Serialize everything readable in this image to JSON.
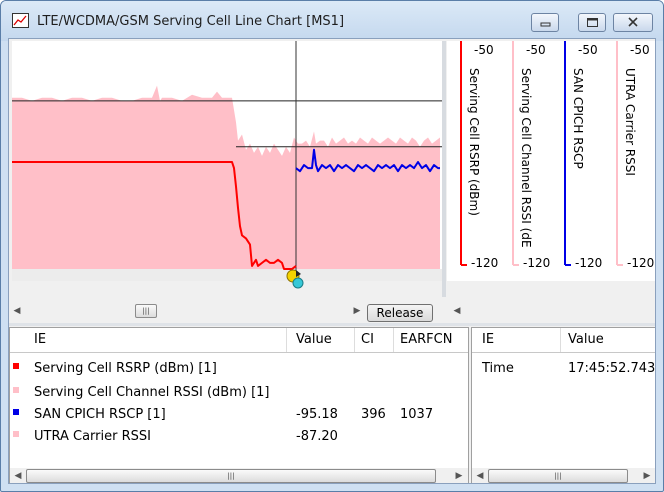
{
  "window": {
    "title": "LTE/WCDMA/GSM Serving Cell Line Chart [MS1]"
  },
  "chart_data": {
    "type": "line",
    "ylim": [
      -120,
      -50
    ],
    "cursor_x": 284,
    "series": [
      {
        "name": "Serving Cell RSRP (dBm)",
        "color": "#ff0000",
        "points": [
          [
            0,
            -85
          ],
          [
            40,
            -85
          ],
          [
            80,
            -85
          ],
          [
            120,
            -85
          ],
          [
            160,
            -85
          ],
          [
            200,
            -85
          ],
          [
            220,
            -85
          ],
          [
            222,
            -87
          ],
          [
            224,
            -93
          ],
          [
            226,
            -100
          ],
          [
            228,
            -106
          ],
          [
            230,
            -109
          ],
          [
            234,
            -110
          ],
          [
            238,
            -112
          ],
          [
            240,
            -119
          ],
          [
            244,
            -117
          ],
          [
            246,
            -119
          ],
          [
            250,
            -118
          ],
          [
            254,
            -117
          ],
          [
            258,
            -118
          ],
          [
            262,
            -118
          ],
          [
            266,
            -117
          ],
          [
            270,
            -118
          ],
          [
            272,
            -120
          ],
          [
            276,
            -120
          ],
          [
            280,
            -120
          ],
          [
            284,
            -119
          ]
        ]
      },
      {
        "name": "Serving Cell Channel RSSI (dBm)",
        "color": "#ffbfc8",
        "type": "area",
        "points": [
          [
            0,
            -64
          ],
          [
            10,
            -64
          ],
          [
            20,
            -65
          ],
          [
            30,
            -64
          ],
          [
            40,
            -64
          ],
          [
            50,
            -65
          ],
          [
            60,
            -64
          ],
          [
            70,
            -64
          ],
          [
            80,
            -65
          ],
          [
            90,
            -64
          ],
          [
            100,
            -64
          ],
          [
            110,
            -65
          ],
          [
            120,
            -65
          ],
          [
            130,
            -64
          ],
          [
            140,
            -64
          ],
          [
            145,
            -60
          ],
          [
            148,
            -65
          ],
          [
            150,
            -64
          ],
          [
            160,
            -64
          ],
          [
            170,
            -65
          ],
          [
            180,
            -63
          ],
          [
            190,
            -64
          ],
          [
            200,
            -64
          ],
          [
            205,
            -62
          ],
          [
            210,
            -64
          ],
          [
            218,
            -64
          ],
          [
            220,
            -64
          ],
          [
            224,
            -72
          ],
          [
            226,
            -78
          ],
          [
            230,
            -76
          ],
          [
            234,
            -81
          ],
          [
            238,
            -79
          ],
          [
            242,
            -82
          ],
          [
            246,
            -80
          ],
          [
            250,
            -83
          ],
          [
            254,
            -80
          ],
          [
            258,
            -82
          ],
          [
            262,
            -79
          ],
          [
            266,
            -81
          ],
          [
            270,
            -83
          ],
          [
            274,
            -80
          ],
          [
            278,
            -82
          ],
          [
            282,
            -77
          ],
          [
            286,
            -79
          ],
          [
            290,
            -79
          ],
          [
            294,
            -78
          ],
          [
            298,
            -80
          ],
          [
            302,
            -75
          ],
          [
            304,
            -79
          ],
          [
            308,
            -78
          ],
          [
            312,
            -78
          ],
          [
            316,
            -80
          ],
          [
            320,
            -77
          ],
          [
            324,
            -79
          ],
          [
            328,
            -78
          ],
          [
            332,
            -77
          ],
          [
            336,
            -79
          ],
          [
            340,
            -78
          ],
          [
            344,
            -79
          ],
          [
            348,
            -77
          ],
          [
            352,
            -78
          ],
          [
            356,
            -79
          ],
          [
            360,
            -77
          ],
          [
            364,
            -78
          ],
          [
            368,
            -79
          ],
          [
            372,
            -78
          ],
          [
            376,
            -77
          ],
          [
            380,
            -78
          ],
          [
            384,
            -79
          ],
          [
            388,
            -77
          ],
          [
            392,
            -78
          ],
          [
            396,
            -79
          ],
          [
            400,
            -77
          ],
          [
            404,
            -78
          ],
          [
            408,
            -80
          ],
          [
            412,
            -78
          ],
          [
            416,
            -77
          ],
          [
            420,
            -79
          ],
          [
            424,
            -78
          ],
          [
            428,
            -77
          ]
        ]
      },
      {
        "name": "SAN CPICH RSCP",
        "color": "#0000e6",
        "points": [
          [
            284,
            -87
          ],
          [
            288,
            -88
          ],
          [
            292,
            -86
          ],
          [
            296,
            -87
          ],
          [
            300,
            -87
          ],
          [
            302,
            -81
          ],
          [
            304,
            -86
          ],
          [
            306,
            -88
          ],
          [
            310,
            -86
          ],
          [
            314,
            -87
          ],
          [
            318,
            -86
          ],
          [
            322,
            -88
          ],
          [
            326,
            -86
          ],
          [
            330,
            -87
          ],
          [
            334,
            -86
          ],
          [
            338,
            -87
          ],
          [
            342,
            -88
          ],
          [
            346,
            -86
          ],
          [
            350,
            -87
          ],
          [
            354,
            -86
          ],
          [
            358,
            -87
          ],
          [
            362,
            -88
          ],
          [
            366,
            -86
          ],
          [
            370,
            -87
          ],
          [
            374,
            -86
          ],
          [
            378,
            -87
          ],
          [
            382,
            -86
          ],
          [
            386,
            -88
          ],
          [
            390,
            -86
          ],
          [
            394,
            -87
          ],
          [
            398,
            -86
          ],
          [
            402,
            -87
          ],
          [
            406,
            -85
          ],
          [
            410,
            -87
          ],
          [
            414,
            -86
          ],
          [
            418,
            -88
          ],
          [
            422,
            -86
          ],
          [
            426,
            -87
          ],
          [
            428,
            -87
          ]
        ]
      },
      {
        "name": "UTRA Carrier RSSI",
        "color": "#ffbfc8",
        "points": []
      }
    ],
    "legend_axes": [
      {
        "label": "Serving Cell RSRP (dBm)",
        "top": "-50",
        "bottom": "-120",
        "color": "#ff0000"
      },
      {
        "label": "Serving Cell Channel RSSI (dE",
        "top": "-50",
        "bottom": "-120",
        "color": "#ffbfc8"
      },
      {
        "label": "SAN CPICH RSCP",
        "top": "-50",
        "bottom": "-120",
        "color": "#0000e6"
      },
      {
        "label": "UTRA Carrier RSSI",
        "top": "-50",
        "bottom": "-120",
        "color": "#ffbfc8"
      }
    ]
  },
  "chart_controls": {
    "release_label": "Release"
  },
  "ie_table": {
    "columns": [
      "IE",
      "Value",
      "CI",
      "EARFCN"
    ],
    "rows": [
      {
        "ie": "Serving Cell RSRP (dBm) [1]",
        "value": "",
        "ci": "",
        "earfcn": "",
        "color": "#ff0000"
      },
      {
        "ie": "Serving Cell Channel RSSI (dBm) [1]",
        "value": "",
        "ci": "",
        "earfcn": "",
        "color": "#ffbfc8"
      },
      {
        "ie": "SAN CPICH RSCP [1]",
        "value": "-95.18",
        "ci": "396",
        "earfcn": "1037",
        "color": "#0000e6"
      },
      {
        "ie": "UTRA Carrier RSSI",
        "value": "-87.20",
        "ci": "",
        "earfcn": "",
        "color": "#ffbfc8"
      }
    ]
  },
  "time_table": {
    "columns": [
      "IE",
      "Value"
    ],
    "rows": [
      {
        "ie": "Time",
        "value": "17:45:52.743"
      }
    ]
  }
}
